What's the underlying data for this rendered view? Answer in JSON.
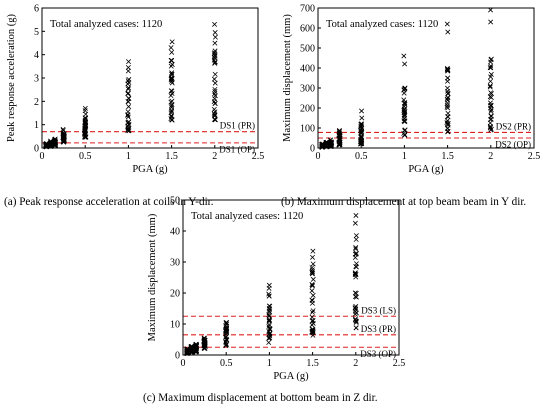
{
  "chart_data": [
    {
      "type": "scatter",
      "id": "a",
      "caption": "(a) Peak response acceleration at coils in Y-dir.",
      "annotation": "Total analyzed cases: 1120",
      "xlabel": "PGA (g)",
      "ylabel": "Peak response acceleration (g)",
      "xlim": [
        0,
        2.5
      ],
      "ylim": [
        0,
        6
      ],
      "xticks": [
        "0",
        "0.5",
        "1",
        "1.5",
        "2",
        "2.5"
      ],
      "yticks": [
        "0",
        "1",
        "2",
        "3",
        "4",
        "5",
        "6"
      ],
      "marker": "x",
      "marker_color": "#000000",
      "columns": [
        {
          "x": 0.05,
          "min": 0.04,
          "max": 0.2,
          "outliers": []
        },
        {
          "x": 0.1,
          "min": 0.07,
          "max": 0.3,
          "outliers": []
        },
        {
          "x": 0.15,
          "min": 0.1,
          "max": 0.4,
          "outliers": []
        },
        {
          "x": 0.25,
          "min": 0.25,
          "max": 0.65,
          "outliers": [
            0.75,
            0.8
          ]
        },
        {
          "x": 0.5,
          "min": 0.45,
          "max": 1.3,
          "outliers": [
            1.45,
            1.6,
            1.7
          ]
        },
        {
          "x": 1.0,
          "min": 0.7,
          "max": 3.0,
          "outliers": [
            3.3,
            3.45,
            3.7
          ]
        },
        {
          "x": 1.5,
          "min": 1.0,
          "max": 3.9,
          "outliers": [
            4.1,
            4.3,
            4.55
          ]
        },
        {
          "x": 2.0,
          "min": 1.2,
          "max": 4.6,
          "outliers": [
            4.75,
            4.95,
            5.3
          ]
        }
      ],
      "thresholds": [
        {
          "label": "DS1 (PR)",
          "value": 0.7
        },
        {
          "label": "DS1 (OP)",
          "value": 0.22
        }
      ]
    },
    {
      "type": "scatter",
      "id": "b",
      "caption": "(b) Maximum displacement at top beam beam in Y dir.",
      "annotation": "Total analyzed cases: 1120",
      "xlabel": "PGA (g)",
      "ylabel": "Maximum displacement (mm)",
      "xlim": [
        0,
        2.5
      ],
      "ylim": [
        0,
        700
      ],
      "xticks": [
        "0",
        "0.5",
        "1",
        "1.5",
        "2",
        "2.5"
      ],
      "yticks": [
        "0",
        "100",
        "200",
        "300",
        "400",
        "500",
        "600",
        "700"
      ],
      "marker": "x",
      "marker_color": "#000000",
      "columns": [
        {
          "x": 0.05,
          "min": 3,
          "max": 20,
          "outliers": []
        },
        {
          "x": 0.1,
          "min": 5,
          "max": 30,
          "outliers": []
        },
        {
          "x": 0.15,
          "min": 8,
          "max": 45,
          "outliers": []
        },
        {
          "x": 0.25,
          "min": 15,
          "max": 90,
          "outliers": []
        },
        {
          "x": 0.5,
          "min": 20,
          "max": 130,
          "outliers": [
            150,
            185
          ]
        },
        {
          "x": 1.0,
          "min": 60,
          "max": 310,
          "outliers": [
            420,
            460
          ]
        },
        {
          "x": 1.5,
          "min": 80,
          "max": 430,
          "outliers": [
            580,
            620
          ]
        },
        {
          "x": 2.0,
          "min": 90,
          "max": 460,
          "outliers": [
            630,
            690
          ]
        }
      ],
      "thresholds": [
        {
          "label": "DS2 (PR)",
          "value": 78
        },
        {
          "label": "DS2 (OP)",
          "value": 50
        }
      ]
    },
    {
      "type": "scatter",
      "id": "c",
      "caption": "(c) Maximum displacement at bottom beam in Z dir.",
      "annotation": "Total analyzed cases: 1120",
      "xlabel": "PGA (g)",
      "ylabel": "Maximum displacement (mm)",
      "xlim": [
        0,
        2.5
      ],
      "ylim": [
        0,
        50
      ],
      "xticks": [
        "0",
        "0.5",
        "1",
        "1.5",
        "2",
        "2.5"
      ],
      "yticks": [
        "0",
        "10",
        "20",
        "30",
        "40",
        "50"
      ],
      "marker": "x",
      "marker_color": "#000000",
      "columns": [
        {
          "x": 0.05,
          "min": 0.5,
          "max": 2.0,
          "outliers": []
        },
        {
          "x": 0.1,
          "min": 0.8,
          "max": 3.0,
          "outliers": []
        },
        {
          "x": 0.15,
          "min": 1.0,
          "max": 3.5,
          "outliers": []
        },
        {
          "x": 0.25,
          "min": 2.0,
          "max": 5.5,
          "outliers": []
        },
        {
          "x": 0.5,
          "min": 3.0,
          "max": 10.5,
          "outliers": []
        },
        {
          "x": 1.0,
          "min": 4.0,
          "max": 20.0,
          "outliers": [
            21.5,
            22.5
          ]
        },
        {
          "x": 1.5,
          "min": 6.0,
          "max": 30.0,
          "outliers": [
            31.5,
            33.5
          ]
        },
        {
          "x": 2.0,
          "min": 8.0,
          "max": 40.0,
          "outliers": [
            42.5,
            45.0
          ]
        }
      ],
      "thresholds": [
        {
          "label": "DS3 (LS)",
          "value": 12.5
        },
        {
          "label": "DS3 (PR)",
          "value": 6.5
        },
        {
          "label": "DS3 (OP)",
          "value": 2.5
        }
      ]
    }
  ],
  "colors": {
    "threshold_line": "#e02020",
    "marker": "#000000",
    "axis": "#000000"
  }
}
